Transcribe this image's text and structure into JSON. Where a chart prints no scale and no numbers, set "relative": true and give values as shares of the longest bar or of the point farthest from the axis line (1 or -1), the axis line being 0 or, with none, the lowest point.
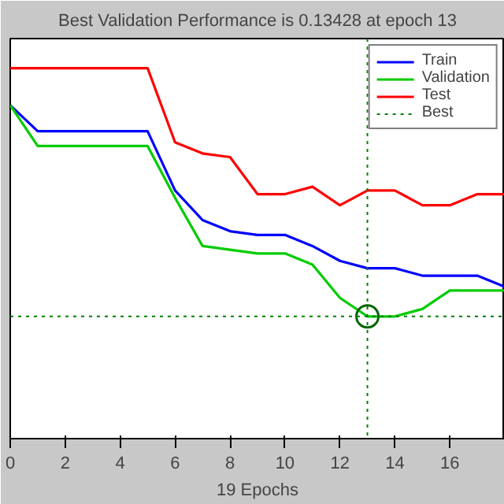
{
  "chart_data": {
    "type": "line",
    "title": "Best Validation Performance is 0.13428 at epoch 13",
    "xlabel": "19 Epochs",
    "relative": true,
    "x": [
      0,
      1,
      2,
      3,
      4,
      5,
      6,
      7,
      8,
      9,
      10,
      11,
      12,
      13,
      14,
      15,
      16,
      17,
      18
    ],
    "series": [
      {
        "name": "Train",
        "color": "#0000ff",
        "values": [
          0.9,
          0.83,
          0.83,
          0.83,
          0.83,
          0.83,
          0.67,
          0.59,
          0.56,
          0.55,
          0.55,
          0.52,
          0.48,
          0.46,
          0.46,
          0.44,
          0.44,
          0.44,
          0.41
        ]
      },
      {
        "name": "Validation",
        "color": "#00cc00",
        "values": [
          0.9,
          0.79,
          0.79,
          0.79,
          0.79,
          0.79,
          0.65,
          0.52,
          0.51,
          0.5,
          0.5,
          0.47,
          0.38,
          0.33,
          0.33,
          0.35,
          0.4,
          0.4,
          0.4
        ]
      },
      {
        "name": "Test",
        "color": "#ff0000",
        "values": [
          1.0,
          1.0,
          1.0,
          1.0,
          1.0,
          1.0,
          0.8,
          0.77,
          0.76,
          0.66,
          0.66,
          0.68,
          0.63,
          0.67,
          0.67,
          0.63,
          0.63,
          0.66,
          0.66
        ]
      },
      {
        "type": "scatter",
        "marker": "circle",
        "color": "#006600",
        "x": [
          13
        ],
        "values": [
          0.33
        ]
      }
    ],
    "ref_lines": [
      {
        "axis": "x",
        "value": 13,
        "label": "Best",
        "color": "#008000",
        "line_style": "dotted"
      },
      {
        "axis": "y",
        "value": 0.33,
        "color": "#008000",
        "line_style": "dotted"
      }
    ],
    "xlim": [
      0,
      18
    ],
    "xticks": [
      0,
      2,
      4,
      6,
      8,
      10,
      12,
      14,
      16
    ],
    "legend": "top right",
    "grid": false,
    "line_style": "solid"
  }
}
